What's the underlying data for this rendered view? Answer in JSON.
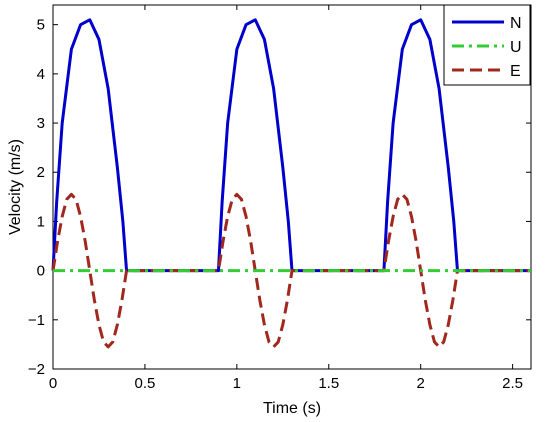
{
  "chart_data": {
    "type": "line",
    "xlabel": "Time (s)",
    "ylabel": "Velocity (m/s)",
    "xlim": [
      0,
      2.6
    ],
    "ylim": [
      -2,
      5.4
    ],
    "x_ticks": [
      0,
      0.5,
      1,
      1.5,
      2,
      2.5
    ],
    "x_tick_labels": [
      "0",
      "0.5",
      "1",
      "1.5",
      "2",
      "2.5"
    ],
    "y_ticks": [
      -2,
      -1,
      0,
      1,
      2,
      3,
      4,
      5
    ],
    "y_tick_labels": [
      "−2",
      "−1",
      "0",
      "1",
      "2",
      "3",
      "4",
      "5"
    ],
    "grid": false,
    "legend_position": "top-right",
    "series": [
      {
        "name": "N",
        "color": "#0000cd",
        "style": "solid",
        "x": [
          0,
          0.02,
          0.05,
          0.1,
          0.15,
          0.2,
          0.25,
          0.3,
          0.35,
          0.38,
          0.4,
          0.9,
          0.92,
          0.95,
          1.0,
          1.05,
          1.1,
          1.15,
          1.2,
          1.25,
          1.28,
          1.3,
          1.8,
          1.82,
          1.85,
          1.9,
          1.95,
          2.0,
          2.05,
          2.1,
          2.15,
          2.18,
          2.2,
          2.6
        ],
        "y": [
          0,
          1.4,
          3.0,
          4.5,
          5.0,
          5.1,
          4.7,
          3.7,
          2.1,
          1.0,
          0,
          0,
          1.4,
          3.0,
          4.5,
          5.0,
          5.1,
          4.7,
          3.7,
          2.1,
          1.0,
          0,
          0,
          1.4,
          3.0,
          4.5,
          5.0,
          5.1,
          4.7,
          3.7,
          2.1,
          1.0,
          0,
          0
        ]
      },
      {
        "name": "U",
        "color": "#33cc33",
        "style": "dashdot",
        "x": [
          0,
          2.6
        ],
        "y": [
          0,
          0
        ]
      },
      {
        "name": "E",
        "color": "#a0281e",
        "style": "dashed",
        "x": [
          0,
          0.025,
          0.05,
          0.075,
          0.1,
          0.125,
          0.15,
          0.175,
          0.2,
          0.225,
          0.25,
          0.275,
          0.3,
          0.325,
          0.35,
          0.375,
          0.4,
          0.9,
          0.925,
          0.95,
          0.975,
          1.0,
          1.025,
          1.05,
          1.075,
          1.1,
          1.125,
          1.15,
          1.175,
          1.2,
          1.225,
          1.25,
          1.275,
          1.3,
          1.8,
          1.825,
          1.85,
          1.875,
          1.9,
          1.925,
          1.95,
          1.975,
          2.0,
          2.025,
          2.05,
          2.075,
          2.1,
          2.125,
          2.15,
          2.175,
          2.2,
          2.6
        ],
        "y": [
          0,
          0.6,
          1.1,
          1.45,
          1.55,
          1.45,
          1.1,
          0.6,
          0,
          -0.6,
          -1.1,
          -1.45,
          -1.55,
          -1.45,
          -1.1,
          -0.6,
          0,
          0,
          0.6,
          1.1,
          1.45,
          1.55,
          1.45,
          1.1,
          0.6,
          0,
          -0.6,
          -1.1,
          -1.45,
          -1.55,
          -1.45,
          -1.1,
          -0.6,
          0,
          0,
          0.6,
          1.1,
          1.45,
          1.55,
          1.45,
          1.1,
          0.6,
          0,
          -0.6,
          -1.1,
          -1.45,
          -1.55,
          -1.45,
          -1.1,
          -0.6,
          0,
          0
        ]
      }
    ]
  }
}
